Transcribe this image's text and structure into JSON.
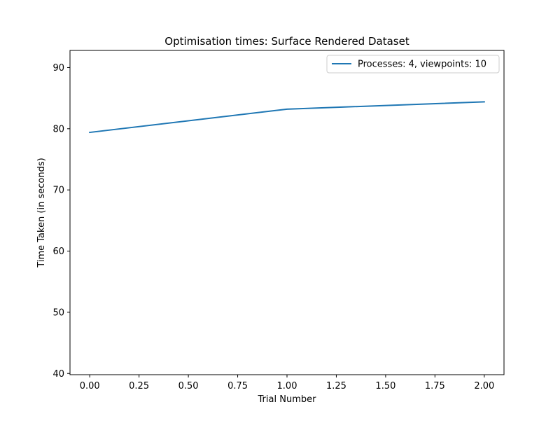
{
  "chart_data": {
    "type": "line",
    "title": "Optimisation times: Surface Rendered Dataset",
    "xlabel": "Trial Number",
    "ylabel": "Time Taken (in seconds)",
    "xlim": [
      -0.1,
      2.1
    ],
    "ylim": [
      39.8,
      92.8
    ],
    "x_ticks": [
      0.0,
      0.25,
      0.5,
      0.75,
      1.0,
      1.25,
      1.5,
      1.75,
      2.0
    ],
    "x_tick_labels": [
      "0.00",
      "0.25",
      "0.50",
      "0.75",
      "1.00",
      "1.25",
      "1.50",
      "1.75",
      "2.00"
    ],
    "y_ticks": [
      40,
      50,
      60,
      70,
      80,
      90
    ],
    "y_tick_labels": [
      "40",
      "50",
      "60",
      "70",
      "80",
      "90"
    ],
    "grid": false,
    "legend_position": "top-right",
    "series": [
      {
        "name": "Processes: 4, viewpoints: 10",
        "color": "#1f77b4",
        "x": [
          0,
          1,
          2
        ],
        "y": [
          79.4,
          83.2,
          84.4
        ]
      }
    ]
  }
}
